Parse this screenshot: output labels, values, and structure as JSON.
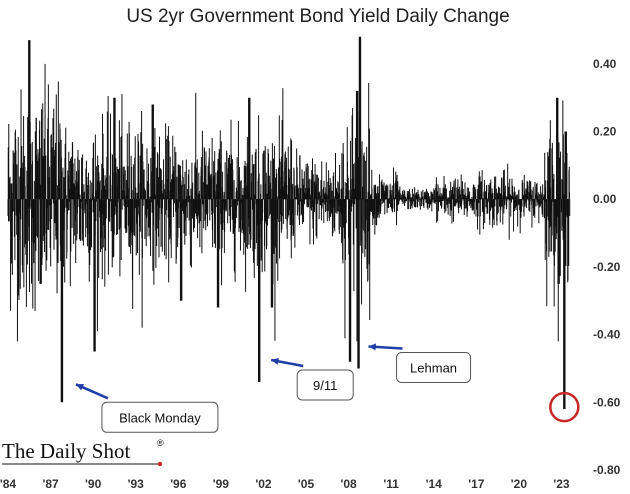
{
  "chart_data": {
    "type": "bar",
    "title": "US 2yr Government Bond Yield Daily Change",
    "xlabel": "",
    "ylabel": "",
    "x_range": [
      1984.0,
      2023.6
    ],
    "ylim": [
      -0.8,
      0.5
    ],
    "y_ticks": [
      0.4,
      0.2,
      0.0,
      -0.2,
      -0.4,
      -0.6,
      -0.8
    ],
    "y_tick_labels": [
      "0.40",
      "0.20",
      "0.00",
      "-0.20",
      "-0.40",
      "-0.60",
      "-0.80"
    ],
    "x_ticks": [
      1984,
      1987,
      1990,
      1993,
      1996,
      1999,
      2002,
      2005,
      2008,
      2011,
      2014,
      2017,
      2020,
      2023
    ],
    "x_tick_labels": [
      "'84",
      "'87",
      "'90",
      "'93",
      "'96",
      "'99",
      "'02",
      "'05",
      "'08",
      "'11",
      "'14",
      "'17",
      "'20",
      "'23"
    ],
    "grid": false,
    "legend": "none",
    "series_color": "#111111",
    "volatility_regimes": [
      {
        "from": 1984.0,
        "to": 1988.0,
        "typical_abs_change": 0.2
      },
      {
        "from": 1988.0,
        "to": 1994.0,
        "typical_abs_change": 0.14
      },
      {
        "from": 1994.0,
        "to": 2001.0,
        "typical_abs_change": 0.12
      },
      {
        "from": 2001.0,
        "to": 2004.0,
        "typical_abs_change": 0.13
      },
      {
        "from": 2004.0,
        "to": 2007.5,
        "typical_abs_change": 0.08
      },
      {
        "from": 2007.5,
        "to": 2009.5,
        "typical_abs_change": 0.18
      },
      {
        "from": 2009.5,
        "to": 2011.5,
        "typical_abs_change": 0.05
      },
      {
        "from": 2011.5,
        "to": 2014.0,
        "typical_abs_change": 0.02
      },
      {
        "from": 2014.0,
        "to": 2017.0,
        "typical_abs_change": 0.04
      },
      {
        "from": 2017.0,
        "to": 2020.0,
        "typical_abs_change": 0.05
      },
      {
        "from": 2020.0,
        "to": 2021.8,
        "typical_abs_change": 0.04
      },
      {
        "from": 2021.8,
        "to": 2023.6,
        "typical_abs_change": 0.14
      }
    ],
    "extreme_moves": [
      {
        "x": 1985.5,
        "y": 0.47
      },
      {
        "x": 1987.8,
        "y": -0.6
      },
      {
        "x": 1986.3,
        "y": -0.25
      },
      {
        "x": 1990.1,
        "y": -0.45
      },
      {
        "x": 1991.5,
        "y": 0.3
      },
      {
        "x": 1994.2,
        "y": 0.28
      },
      {
        "x": 1996.2,
        "y": -0.3
      },
      {
        "x": 1998.8,
        "y": -0.32
      },
      {
        "x": 2001.0,
        "y": 0.3
      },
      {
        "x": 2001.7,
        "y": -0.54
      },
      {
        "x": 2002.6,
        "y": -0.32
      },
      {
        "x": 2008.1,
        "y": -0.48
      },
      {
        "x": 2008.7,
        "y": -0.5
      },
      {
        "x": 2008.8,
        "y": 0.48
      },
      {
        "x": 2008.6,
        "y": 0.32
      },
      {
        "x": 2022.7,
        "y": 0.3
      },
      {
        "x": 2022.8,
        "y": -0.25
      },
      {
        "x": 2023.2,
        "y": -0.62
      },
      {
        "x": 2023.3,
        "y": 0.2
      }
    ],
    "annotations": [
      {
        "label": "Black Monday",
        "x": 1987.8,
        "y": -0.6
      },
      {
        "label": "9/11",
        "x": 2001.7,
        "y": -0.54
      },
      {
        "label": "Lehman",
        "x": 2008.7,
        "y": -0.5
      }
    ],
    "highlight": {
      "x": 2023.2,
      "y": -0.62,
      "color": "#c62828"
    },
    "source": "The Daily Shot",
    "source_mark": "®",
    "source_accent_color": "#c62828",
    "callout_arrow_color": "#1f3ea8"
  }
}
